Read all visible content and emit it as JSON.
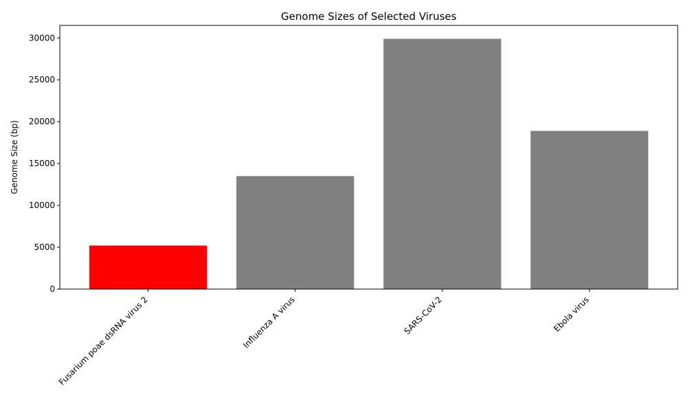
{
  "chart_data": {
    "type": "bar",
    "title": "Genome Sizes of Selected Viruses",
    "xlabel": "",
    "ylabel": "Genome Size (bp)",
    "categories": [
      "Fusarium poae dsRNA virus 2",
      "Influenza A virus",
      "SARS-CoV-2",
      "Ebola virus"
    ],
    "values": [
      5200,
      13500,
      29900,
      18900
    ],
    "bar_colors": [
      "#ff0000",
      "#808080",
      "#808080",
      "#808080"
    ],
    "ylim": [
      0,
      31500
    ],
    "yticks": [
      0,
      5000,
      10000,
      15000,
      20000,
      25000,
      30000
    ],
    "grid": false,
    "legend": "none"
  }
}
